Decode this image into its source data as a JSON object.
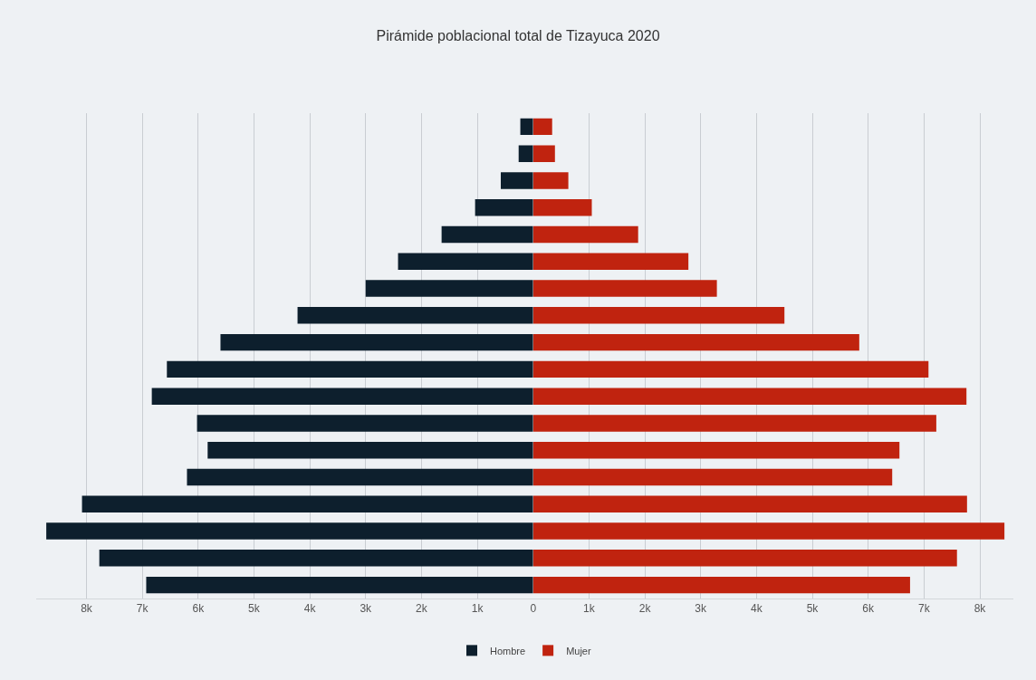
{
  "chart_data": [
    {
      "type": "bar",
      "orientation": "horizontal",
      "title": "Pirámide poblacional total de Tizayuca 2020",
      "categories": [
        null,
        null,
        null,
        null,
        null,
        null,
        null,
        null,
        null,
        null,
        null,
        null,
        null,
        null,
        null,
        null,
        null,
        null
      ],
      "series": [
        {
          "name": "Hombre",
          "color": "#0d1f2d",
          "values": [
            230,
            260,
            580,
            1040,
            1640,
            2420,
            3000,
            4220,
            5600,
            6560,
            6830,
            6020,
            5830,
            6200,
            8080,
            8720,
            7770,
            6930
          ]
        }
      ],
      "xlim": [
        8900,
        0
      ],
      "xticks": [
        {
          "value": 8000,
          "label": "8k"
        },
        {
          "value": 7000,
          "label": "7k"
        },
        {
          "value": 6000,
          "label": "6k"
        },
        {
          "value": 5000,
          "label": "5k"
        },
        {
          "value": 4000,
          "label": "4k"
        },
        {
          "value": 3000,
          "label": "3k"
        },
        {
          "value": 2000,
          "label": "2k"
        },
        {
          "value": 1000,
          "label": "1k"
        }
      ],
      "grid": "x",
      "legend": "bottom",
      "tick_labels": "x"
    },
    {
      "type": "bar",
      "orientation": "horizontal",
      "categories": [
        null,
        null,
        null,
        null,
        null,
        null,
        null,
        null,
        null,
        null,
        null,
        null,
        null,
        null,
        null,
        null,
        null,
        null
      ],
      "series": [
        {
          "name": "Mujer",
          "color": "#c0230f",
          "values": [
            340,
            390,
            630,
            1050,
            1880,
            2780,
            3290,
            4500,
            5840,
            7080,
            7760,
            7220,
            6560,
            6430,
            7770,
            8440,
            7590,
            6750
          ]
        }
      ],
      "xlim": [
        0,
        8600
      ],
      "xticks": [
        0,
        {
          "value": 1000,
          "label": "1k"
        },
        {
          "value": 2000,
          "label": "2k"
        },
        {
          "value": 3000,
          "label": "3k"
        },
        {
          "value": 4000,
          "label": "4k"
        },
        {
          "value": 5000,
          "label": "5k"
        },
        {
          "value": 6000,
          "label": "6k"
        },
        {
          "value": 7000,
          "label": "7k"
        },
        {
          "value": 8000,
          "label": "8k"
        }
      ],
      "grid": "x",
      "legend": "bottom",
      "tick_labels": "x"
    }
  ]
}
